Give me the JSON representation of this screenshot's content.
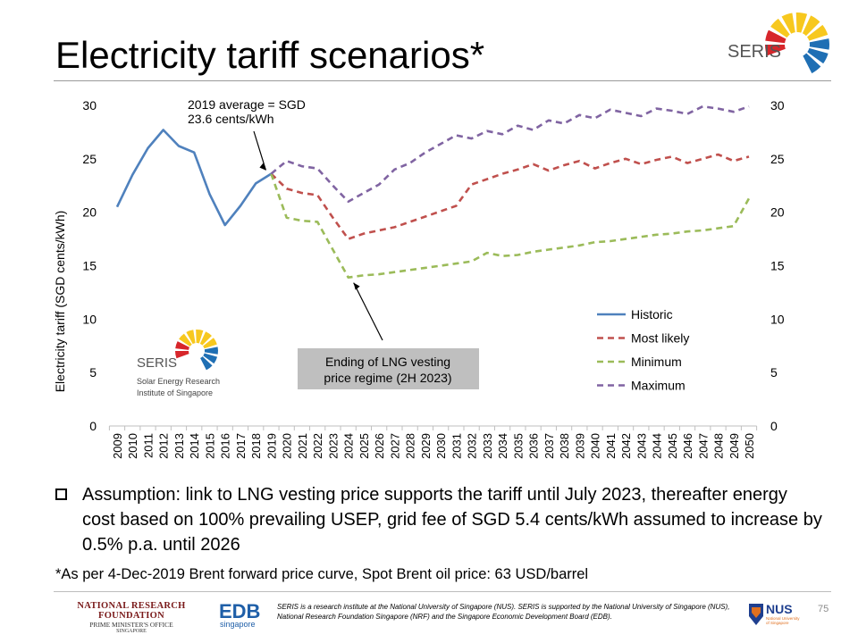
{
  "slide": {
    "title": "Electricity tariff scenarios*",
    "page_number": "75"
  },
  "chart_data": {
    "type": "line",
    "ylabel": "Electricity tariff (SGD cents/kWh)",
    "ylim": [
      0,
      30
    ],
    "yticks": [
      0,
      5,
      10,
      15,
      20,
      25,
      30
    ],
    "right_axis_ticks": [
      0,
      5,
      10,
      15,
      20,
      25,
      30
    ],
    "x": [
      2009,
      2010,
      2011,
      2012,
      2013,
      2014,
      2015,
      2016,
      2017,
      2018,
      2019,
      2020,
      2021,
      2022,
      2023,
      2024,
      2025,
      2026,
      2027,
      2028,
      2029,
      2030,
      2031,
      2032,
      2033,
      2034,
      2035,
      2036,
      2037,
      2038,
      2039,
      2040,
      2041,
      2042,
      2043,
      2044,
      2045,
      2046,
      2047,
      2048,
      2049,
      2050
    ],
    "grid": false,
    "legend_position": "right",
    "series": [
      {
        "name": "Historic",
        "style": "solid",
        "color": "#4f81bd",
        "x": [
          2009,
          2010,
          2011,
          2012,
          2013,
          2014,
          2015,
          2016,
          2017,
          2018,
          2019
        ],
        "values": [
          20.5,
          23.5,
          26.0,
          27.7,
          26.2,
          25.6,
          21.7,
          18.8,
          20.6,
          22.7,
          23.6
        ]
      },
      {
        "name": "Most likely",
        "style": "dashed",
        "color": "#c0504d",
        "x": [
          2019,
          2020,
          2021,
          2022,
          2023,
          2024,
          2025,
          2026,
          2027,
          2028,
          2029,
          2030,
          2031,
          2032,
          2033,
          2034,
          2035,
          2036,
          2037,
          2038,
          2039,
          2040,
          2041,
          2042,
          2043,
          2044,
          2045,
          2046,
          2047,
          2048,
          2049,
          2050
        ],
        "values": [
          23.6,
          22.2,
          21.8,
          21.6,
          19.5,
          17.5,
          18.0,
          18.3,
          18.6,
          19.1,
          19.6,
          20.1,
          20.6,
          22.6,
          23.1,
          23.6,
          24.0,
          24.5,
          23.9,
          24.4,
          24.8,
          24.1,
          24.6,
          25.0,
          24.5,
          24.9,
          25.2,
          24.6,
          25.0,
          25.4,
          24.8,
          25.2
        ]
      },
      {
        "name": "Minimum",
        "style": "dashed",
        "color": "#9bbb59",
        "x": [
          2019,
          2020,
          2021,
          2022,
          2023,
          2024,
          2025,
          2026,
          2027,
          2028,
          2029,
          2030,
          2031,
          2032,
          2033,
          2034,
          2035,
          2036,
          2037,
          2038,
          2039,
          2040,
          2041,
          2042,
          2043,
          2044,
          2045,
          2046,
          2047,
          2048,
          2049,
          2050
        ],
        "values": [
          23.6,
          19.5,
          19.2,
          19.1,
          16.5,
          13.9,
          14.1,
          14.2,
          14.4,
          14.6,
          14.8,
          15.0,
          15.2,
          15.4,
          16.2,
          15.9,
          16.0,
          16.3,
          16.5,
          16.7,
          16.9,
          17.2,
          17.3,
          17.5,
          17.7,
          17.9,
          18.0,
          18.2,
          18.3,
          18.5,
          18.7,
          21.3
        ]
      },
      {
        "name": "Maximum",
        "style": "dashed",
        "color": "#8064a2",
        "x": [
          2019,
          2020,
          2021,
          2022,
          2023,
          2024,
          2025,
          2026,
          2027,
          2028,
          2029,
          2030,
          2031,
          2032,
          2033,
          2034,
          2035,
          2036,
          2037,
          2038,
          2039,
          2040,
          2041,
          2042,
          2043,
          2044,
          2045,
          2046,
          2047,
          2048,
          2049,
          2050
        ],
        "values": [
          23.6,
          24.8,
          24.3,
          24.1,
          22.5,
          21.0,
          21.8,
          22.6,
          24.0,
          24.6,
          25.6,
          26.4,
          27.2,
          26.9,
          27.6,
          27.3,
          28.1,
          27.7,
          28.6,
          28.3,
          29.1,
          28.8,
          29.6,
          29.3,
          29.0,
          29.7,
          29.5,
          29.2,
          29.9,
          29.7,
          29.4,
          29.9
        ]
      }
    ],
    "annotations": [
      {
        "text_lines": [
          "2019 average =  SGD",
          "23.6 cents/kWh"
        ],
        "arrow_to": [
          2019,
          23.6
        ]
      },
      {
        "text_lines": [
          "Ending of LNG vesting",
          "price regime (2H 2023)"
        ],
        "arrow_to": [
          2024,
          13.9
        ],
        "boxed": true
      }
    ]
  },
  "inset_logo": {
    "name": "SERIS",
    "caption_lines": [
      "Solar Energy Research",
      "Institute of Singapore"
    ]
  },
  "top_logo": {
    "name": "SERIS"
  },
  "bullet": {
    "text": "Assumption: link to LNG vesting price supports the tariff until July 2023, thereafter energy cost based on 100% prevailing USEP, grid fee of SGD 5.4 cents/kWh assumed to increase by 0.5% p.a. until 2026"
  },
  "footnote": "*As per 4-Dec-2019 Brent forward price curve, Spot Brent oil price: 63 USD/barrel",
  "footer": {
    "nrf_line1": "NATIONAL RESEARCH FOUNDATION",
    "nrf_line2": "PRIME MINISTER'S OFFICE",
    "nrf_line3": "SINGAPORE",
    "edb_name": "EDB",
    "edb_sub": "singapore",
    "disclaimer": "SERIS is a research institute at the National University of Singapore (NUS). SERIS is supported by the National University of Singapore (NUS), National Research Foundation Singapore (NRF) and the Singapore Economic Development Board (EDB).",
    "nus_name": "NUS",
    "nus_sub_lines": [
      "National University",
      "of Singapore"
    ]
  },
  "colors": {
    "sun_red": "#d7262b",
    "sun_yellow": "#f7c81e",
    "sun_blue": "#1f6fb4",
    "seris_text": "#555555",
    "annotation_box": "#bfbfbf"
  }
}
